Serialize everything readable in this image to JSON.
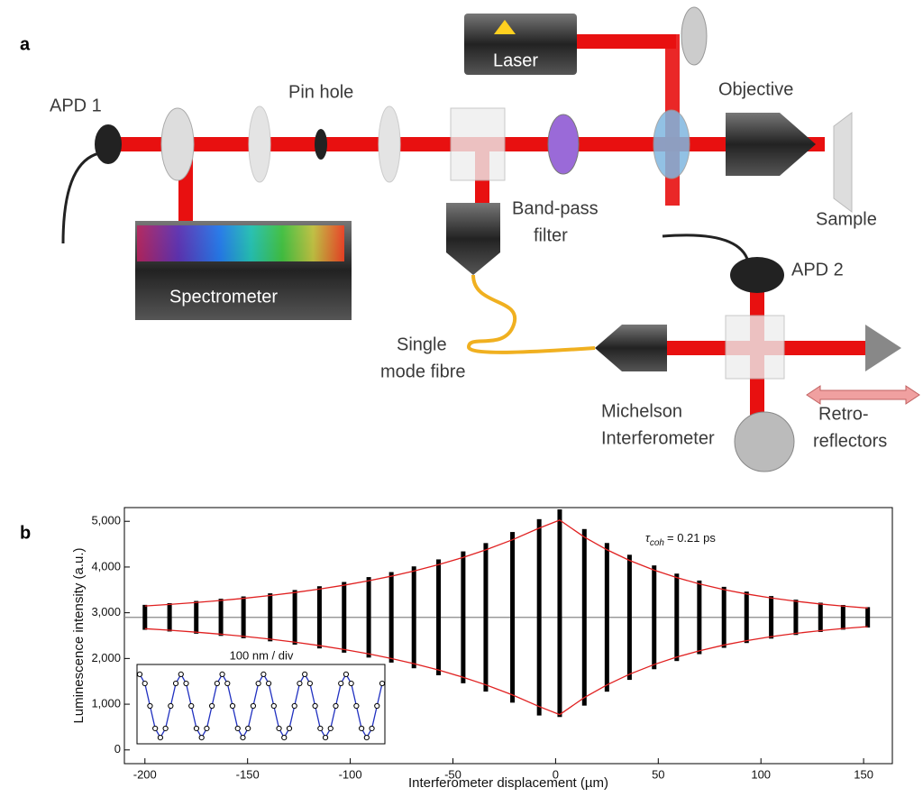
{
  "panel_a": {
    "letter": "a",
    "labels": {
      "apd1": "APD 1",
      "pinhole": "Pin hole",
      "laser": "Laser",
      "objective": "Objective",
      "sample": "Sample",
      "bandpass": [
        "Band-pass",
        "filter"
      ],
      "spectrometer": "Spectrometer",
      "apd2": "APD 2",
      "fibre": [
        "Single",
        "mode fibre"
      ],
      "michelson": [
        "Michelson",
        "Interferometer"
      ],
      "retro": [
        "Retro-",
        "reflectors"
      ]
    }
  },
  "chart_data": {
    "type": "bursts",
    "panel": "b",
    "xlabel": "Interferometer displacement (µm)",
    "ylabel": "Luminescence intensity (a.u.)",
    "annotation": {
      "symbol": "τ",
      "subscript": "coh",
      "text": "= 0.21 ps"
    },
    "xlim": [
      -210,
      164
    ],
    "ylim": [
      -300,
      5300
    ],
    "xticks": [
      -200,
      -150,
      -100,
      -50,
      0,
      50,
      100,
      150
    ],
    "yticks": [
      0,
      {
        "value": 1000,
        "label": "1,000"
      },
      {
        "value": 2000,
        "label": "2,000"
      },
      {
        "value": 3000,
        "label": "3,000"
      },
      {
        "value": 4000,
        "label": "4,000"
      },
      {
        "value": 5000,
        "label": "5,000"
      }
    ],
    "baseline": 2900,
    "x": [
      -200,
      -188,
      -175,
      -163,
      -152,
      -139,
      -127,
      -115,
      -103,
      -91,
      -80,
      -69,
      -57,
      -45,
      -34,
      -21,
      -8,
      2,
      14,
      25,
      36,
      48,
      59,
      70,
      82,
      93,
      105,
      117,
      129,
      140,
      152
    ],
    "series": [
      {
        "color": "#000000",
        "values": [
          3173,
          3210,
          3258,
          3306,
          3357,
          3425,
          3497,
          3580,
          3673,
          3780,
          3890,
          4014,
          4167,
          4342,
          4524,
          4766,
          5047,
          5260,
          4831,
          4526,
          4268,
          4035,
          3856,
          3705,
          3567,
          3462,
          3365,
          3286,
          3220,
          3170,
          3123
        ]
      },
      {
        "color": "#000000",
        "values": [
          2627,
          2590,
          2542,
          2494,
          2443,
          2375,
          2303,
          2220,
          2127,
          2020,
          1910,
          1786,
          1633,
          1458,
          1276,
          1034,
          753,
          720,
          969,
          1274,
          1532,
          1765,
          1944,
          2095,
          2233,
          2338,
          2435,
          2514,
          2580,
          2630,
          2677
        ]
      },
      {
        "color": "#e02020",
        "values": [
          3148,
          3182,
          3225,
          3269,
          3315,
          3377,
          3443,
          3518,
          3603,
          3700,
          3800,
          3913,
          4052,
          4211,
          4376,
          4596,
          4852,
          5027,
          4655,
          4378,
          4144,
          3932,
          3769,
          3632,
          3506,
          3411,
          3323,
          3251,
          3191,
          3145,
          3103
        ]
      },
      {
        "color": "#e02020",
        "values": [
          2652,
          2618,
          2575,
          2531,
          2485,
          2423,
          2357,
          2282,
          2197,
          2100,
          2000,
          1887,
          1748,
          1589,
          1424,
          1204,
          948,
          773,
          1145,
          1422,
          1656,
          1868,
          2031,
          2168,
          2294,
          2389,
          2477,
          2549,
          2609,
          2655,
          2697
        ]
      }
    ],
    "inset": {
      "title": "100 nm / div",
      "ylim": [
        0,
        1
      ],
      "color": "#2030c0",
      "values": [
        0.95,
        0.82,
        0.5,
        0.18,
        0.05,
        0.18,
        0.5,
        0.82,
        0.95,
        0.82,
        0.5,
        0.18,
        0.05,
        0.18,
        0.5,
        0.82,
        0.95,
        0.82,
        0.5,
        0.18,
        0.05,
        0.18,
        0.5,
        0.82,
        0.95,
        0.82,
        0.5,
        0.18,
        0.05,
        0.18,
        0.5,
        0.82,
        0.95,
        0.82,
        0.5,
        0.18,
        0.05,
        0.18,
        0.5,
        0.82,
        0.95,
        0.82,
        0.5,
        0.18,
        0.05,
        0.18,
        0.5,
        0.82
      ]
    }
  }
}
